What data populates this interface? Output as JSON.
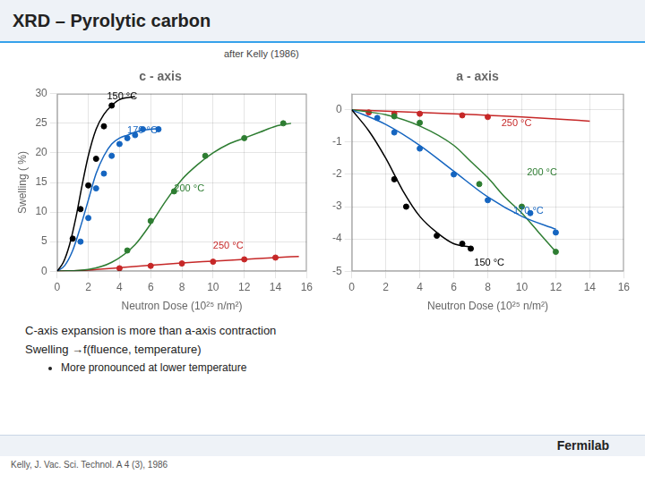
{
  "title": "XRD – Pyrolytic carbon",
  "subtitle": "after Kelly (1986)",
  "notes": [
    "C-axis expansion is more than a-axis contraction",
    "Swelling →f(fluence, temperature)"
  ],
  "sub_notes": [
    "More pronounced at lower temperature"
  ],
  "footer": "Fermilab",
  "citation": "Kelly, J. Vac. Sci. Technol. A 4 (3), 1986",
  "chart_data": [
    {
      "type": "line",
      "title": "c - axis",
      "xlabel": "Neutron Dose (10²⁵ n/m²)",
      "ylabel": "Swelling ( %)",
      "xlim": [
        0,
        16
      ],
      "ylim": [
        0,
        30
      ],
      "xticks": [
        0,
        2,
        4,
        6,
        8,
        10,
        12,
        14,
        16
      ],
      "yticks": [
        0,
        5,
        10,
        15,
        20,
        25,
        30
      ],
      "grid": true,
      "series": [
        {
          "name": "150 °C",
          "color": "#000000",
          "line_x": [
            0,
            0.4,
            0.8,
            1.2,
            1.6,
            2.0,
            2.5,
            3.0,
            3.5,
            4.0,
            5.0
          ],
          "line_y": [
            0,
            1.5,
            4.5,
            9.0,
            14.5,
            19.5,
            24.0,
            26.5,
            28.0,
            29.0,
            29.5
          ],
          "x": [
            1.0,
            1.5,
            2.0,
            2.5,
            3.0,
            3.5
          ],
          "values": [
            5.5,
            10.5,
            14.5,
            19.0,
            24.5,
            28.0
          ],
          "label_x": 3.2,
          "label_y": 29.5
        },
        {
          "name": "170 °C",
          "color": "#1565c0",
          "line_x": [
            0,
            0.5,
            1.0,
            1.5,
            2.0,
            2.5,
            3.0,
            3.5,
            4.0,
            4.5,
            5.0,
            5.5,
            6.0,
            6.5
          ],
          "line_y": [
            0,
            1.0,
            3.5,
            7.5,
            12.0,
            16.5,
            19.5,
            21.5,
            22.5,
            23.0,
            23.5,
            23.8,
            24.0,
            24.1
          ],
          "x": [
            1.5,
            2.0,
            2.5,
            3.0,
            3.5,
            4.0,
            4.5,
            5.0,
            5.5,
            6.5
          ],
          "values": [
            5.0,
            9.0,
            14.0,
            16.5,
            19.5,
            21.5,
            22.5,
            23.0,
            24.0,
            24.0
          ],
          "label_x": 4.5,
          "label_y": 23.8
        },
        {
          "name": "200 °C",
          "color": "#2e7d32",
          "line_x": [
            0,
            2.0,
            3.5,
            5.0,
            6.0,
            7.0,
            8.0,
            9.0,
            10.0,
            11.0,
            12.0,
            13.0,
            14.0,
            15.0
          ],
          "line_y": [
            0,
            0.3,
            1.5,
            4.5,
            8.0,
            12.0,
            15.5,
            18.0,
            20.0,
            21.5,
            22.5,
            23.5,
            24.5,
            25.0
          ],
          "x": [
            4.5,
            6.0,
            7.5,
            9.5,
            12.0,
            14.5
          ],
          "values": [
            3.5,
            8.5,
            13.5,
            19.5,
            22.5,
            25.0
          ],
          "label_x": 7.5,
          "label_y": 14.0
        },
        {
          "name": "250 °C",
          "color": "#c62828",
          "line_x": [
            0,
            2.0,
            4.0,
            6.0,
            8.0,
            10.0,
            12.0,
            14.0,
            15.5
          ],
          "line_y": [
            0,
            0.2,
            0.6,
            1.0,
            1.4,
            1.7,
            2.0,
            2.3,
            2.5
          ],
          "x": [
            4.0,
            6.0,
            8.0,
            10.0,
            12.0,
            14.0
          ],
          "values": [
            0.5,
            0.9,
            1.3,
            1.6,
            2.0,
            2.3
          ],
          "label_x": 10.0,
          "label_y": 4.2
        }
      ]
    },
    {
      "type": "line",
      "title": "a - axis",
      "xlabel": "Neutron Dose (10²⁵ n/m²)",
      "xlim": [
        0,
        16
      ],
      "ylim": [
        -5,
        0.5
      ],
      "xticks": [
        0,
        2,
        4,
        6,
        8,
        10,
        12,
        14,
        16
      ],
      "yticks": [
        0,
        -1,
        -2,
        -3,
        -4,
        -5
      ],
      "grid": true,
      "series": [
        {
          "name": "150 °C",
          "color": "#000000",
          "line_x": [
            0,
            1.0,
            2.0,
            3.0,
            4.0,
            5.0,
            6.0,
            7.0
          ],
          "line_y": [
            0,
            -0.65,
            -1.5,
            -2.5,
            -3.3,
            -3.8,
            -4.15,
            -4.25
          ],
          "x": [
            2.5,
            3.2,
            5.0,
            6.5,
            7.0
          ],
          "values": [
            -2.15,
            -3.0,
            -3.9,
            -4.15,
            -4.3
          ],
          "label_x": 7.2,
          "label_y": -4.75
        },
        {
          "name": "170 °C",
          "color": "#1565c0",
          "line_x": [
            0,
            2.0,
            4.0,
            6.0,
            8.0,
            10.0,
            12.0
          ],
          "line_y": [
            0,
            -0.45,
            -1.1,
            -1.9,
            -2.7,
            -3.3,
            -3.7
          ],
          "x": [
            1.5,
            2.5,
            4.0,
            6.0,
            8.0,
            10.5,
            12.0
          ],
          "values": [
            -0.25,
            -0.7,
            -1.2,
            -2.0,
            -2.8,
            -3.2,
            -3.8
          ],
          "label_x": 9.5,
          "label_y": -3.15
        },
        {
          "name": "200 °C",
          "color": "#2e7d32",
          "line_x": [
            0,
            2.0,
            4.0,
            6.0,
            7.0,
            8.0,
            9.0,
            10.0,
            11.0,
            12.0
          ],
          "line_y": [
            0,
            -0.15,
            -0.5,
            -1.1,
            -1.6,
            -2.1,
            -2.7,
            -3.2,
            -3.8,
            -4.4
          ],
          "x": [
            2.5,
            4.0,
            7.5,
            10.0,
            12.0
          ],
          "values": [
            -0.2,
            -0.4,
            -2.3,
            -3.0,
            -4.4
          ],
          "label_x": 10.3,
          "label_y": -1.95
        },
        {
          "name": "250 °C",
          "color": "#c62828",
          "line_x": [
            0,
            2.0,
            4.0,
            6.0,
            8.0,
            10.0,
            12.0,
            14.0
          ],
          "line_y": [
            0,
            -0.04,
            -0.08,
            -0.12,
            -0.17,
            -0.22,
            -0.28,
            -0.35
          ],
          "x": [
            1.0,
            2.5,
            4.0,
            6.5,
            8.0
          ],
          "values": [
            -0.08,
            -0.12,
            -0.12,
            -0.17,
            -0.22
          ],
          "label_x": 8.8,
          "label_y": -0.42
        }
      ]
    }
  ]
}
